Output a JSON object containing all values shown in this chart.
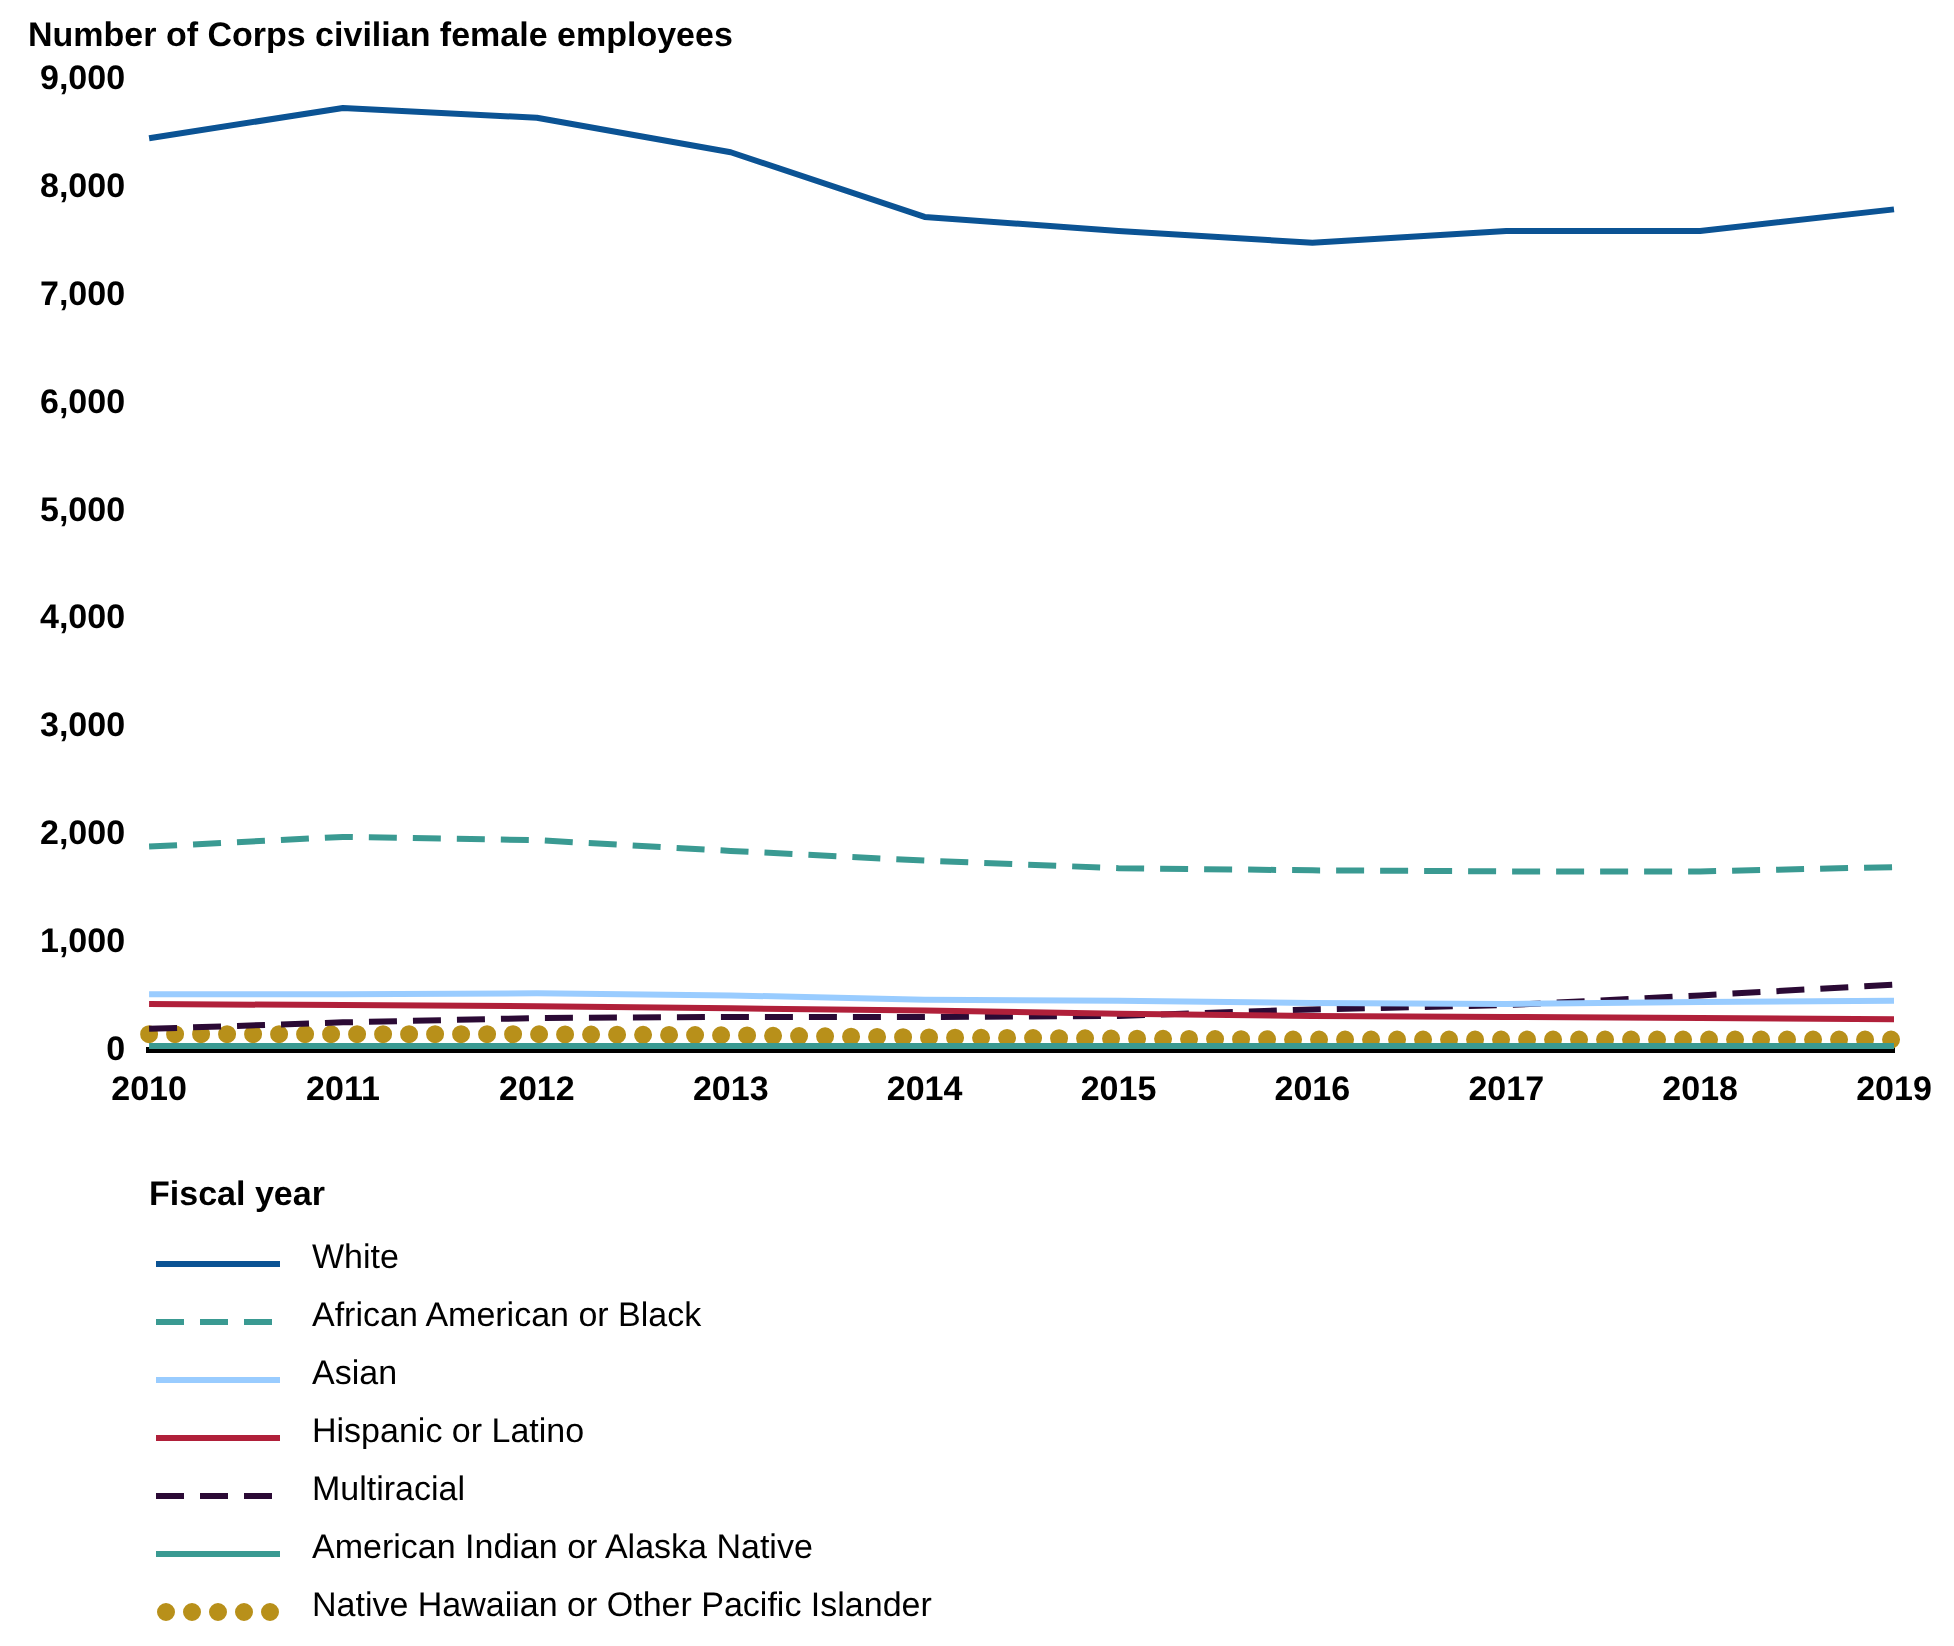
{
  "chart_data": {
    "type": "line",
    "ylabel": "Number of Corps civilian female employees",
    "xlabel": "Fiscal year",
    "categories": [
      "2010",
      "2011",
      "2012",
      "2013",
      "2014",
      "2015",
      "2016",
      "2017",
      "2018",
      "2019"
    ],
    "ylim": [
      0,
      9000
    ],
    "yticks": [
      {
        "value": 0,
        "label": "0"
      },
      {
        "value": 1000,
        "label": "1,000"
      },
      {
        "value": 2000,
        "label": "2,000"
      },
      {
        "value": 3000,
        "label": "3,000"
      },
      {
        "value": 4000,
        "label": "4,000"
      },
      {
        "value": 5000,
        "label": "5,000"
      },
      {
        "value": 6000,
        "label": "6,000"
      },
      {
        "value": 7000,
        "label": "7,000"
      },
      {
        "value": 8000,
        "label": "8,000"
      },
      {
        "value": 9000,
        "label": "9,000"
      }
    ],
    "grid": false,
    "legend": "bottom",
    "marker": "none",
    "series": [
      {
        "name": "White",
        "color": "#0b5394",
        "line_style": "solid",
        "values": [
          8460,
          8740,
          8650,
          8330,
          7730,
          7600,
          7490,
          7600,
          7600,
          7800
        ]
      },
      {
        "name": "African American or Black",
        "color": "#3a9a92",
        "line_style": "dashed",
        "values": [
          1890,
          1980,
          1950,
          1850,
          1760,
          1690,
          1670,
          1660,
          1660,
          1700
        ]
      },
      {
        "name": "Asian",
        "color": "#99ccff",
        "line_style": "solid",
        "values": [
          520,
          520,
          530,
          510,
          470,
          460,
          440,
          430,
          450,
          460
        ]
      },
      {
        "name": "Hispanic or Latino",
        "color": "#b0203a",
        "line_style": "solid",
        "values": [
          430,
          420,
          410,
          390,
          370,
          340,
          320,
          310,
          300,
          290
        ]
      },
      {
        "name": "Multiracial",
        "color": "#2b0a35",
        "line_style": "dashed",
        "values": [
          200,
          260,
          300,
          310,
          310,
          320,
          380,
          420,
          510,
          610
        ]
      },
      {
        "name": "American Indian or Alaska Native",
        "color": "#3a9a92",
        "line_style": "solid",
        "values": [
          40,
          40,
          40,
          40,
          40,
          40,
          40,
          40,
          40,
          40
        ]
      },
      {
        "name": "Native Hawaiian or Other Pacific Islander",
        "color": "#b8901a",
        "line_style": "dotted",
        "values": [
          150,
          150,
          150,
          140,
          120,
          110,
          100,
          100,
          100,
          100
        ]
      }
    ]
  }
}
